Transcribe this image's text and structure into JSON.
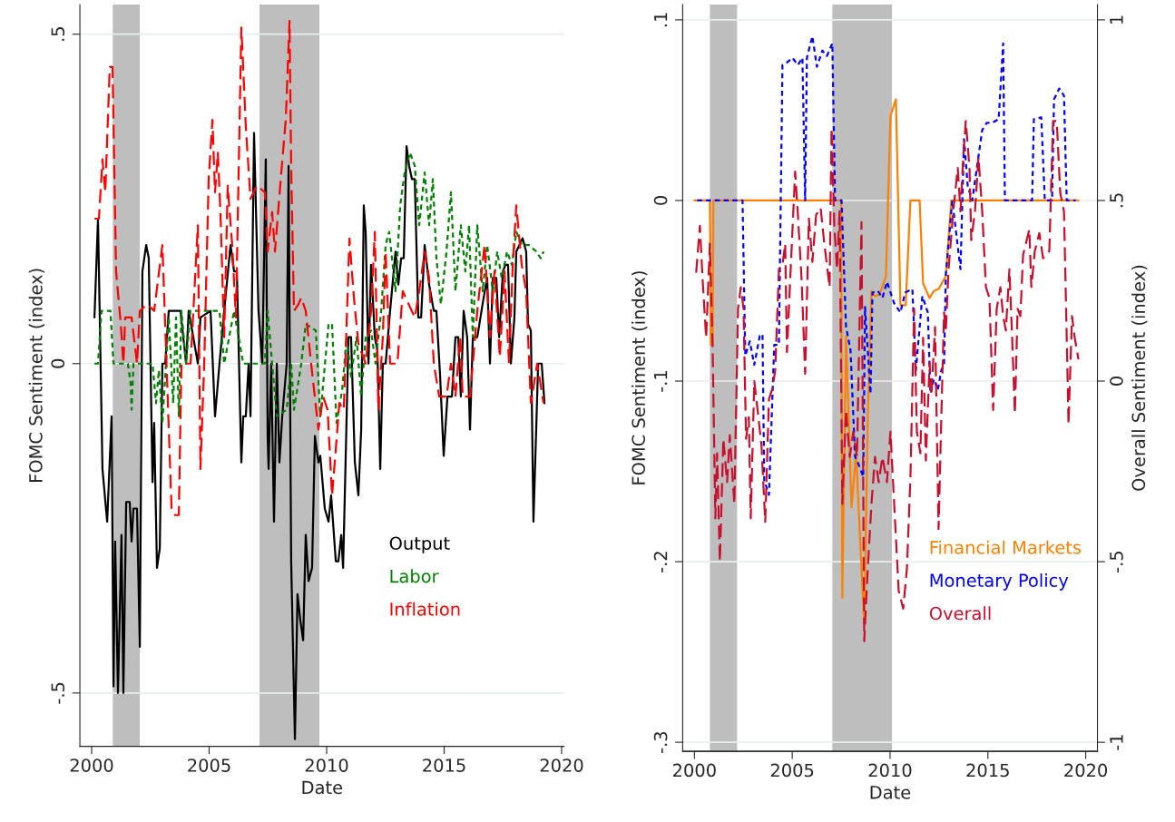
{
  "chart_data": [
    {
      "type": "line",
      "xlabel": "Date",
      "ylabel": "FOMC Sentiment (index)",
      "xlim": [
        1999.5,
        2020.1
      ],
      "ylim": [
        -0.581,
        0.545
      ],
      "xticks": [
        2000,
        2005,
        2010,
        2015,
        2020
      ],
      "yticks": [
        {
          "value": -0.5,
          "label": "-.5"
        },
        {
          "value": 0,
          "label": "0"
        },
        {
          "value": 0.5,
          "label": ".5"
        }
      ],
      "grid": "y",
      "legend": "bottom right",
      "bands": [
        {
          "axis": "x",
          "from": 2000.9,
          "to": 2002.05,
          "color": "#bebebe"
        },
        {
          "axis": "x",
          "from": 2007.14,
          "to": 2009.69,
          "color": "#bebebe"
        }
      ],
      "series": [
        {
          "name": "Output",
          "color": "#000000",
          "line_style": "solid",
          "x": [
            2000.12,
            2000.27,
            2000.46,
            2000.66,
            2000.85,
            2000.93,
            2001.0,
            2001.12,
            2001.27,
            2001.35,
            2001.47,
            2001.62,
            2001.7,
            2001.78,
            2001.93,
            2002.05,
            2002.16,
            2002.32,
            2002.43,
            2002.59,
            2002.66,
            2002.78,
            2002.9,
            2003.01,
            2003.13,
            2003.28,
            2003.51,
            2003.78,
            2004.02,
            2004.13,
            2004.52,
            2004.63,
            2005.06,
            2005.25,
            2005.44,
            2005.64,
            2005.91,
            2006.06,
            2006.18,
            2006.37,
            2006.45,
            2006.56,
            2006.68,
            2006.76,
            2006.91,
            2007.1,
            2007.26,
            2007.41,
            2007.49,
            2007.53,
            2007.64,
            2007.76,
            2007.88,
            2007.99,
            2008.11,
            2008.3,
            2008.38,
            2008.49,
            2008.65,
            2008.76,
            2008.88,
            2009.0,
            2009.11,
            2009.23,
            2009.38,
            2009.5,
            2009.65,
            2009.73,
            2009.92,
            2010.08,
            2010.19,
            2010.39,
            2010.5,
            2010.62,
            2010.7,
            2010.93,
            2011.04,
            2011.2,
            2011.35,
            2011.47,
            2011.58,
            2011.66,
            2011.78,
            2011.89,
            2012.05,
            2012.16,
            2012.28,
            2012.39,
            2012.51,
            2012.7,
            2012.93,
            2013.05,
            2013.17,
            2013.28,
            2013.4,
            2013.51,
            2013.63,
            2013.75,
            2013.9,
            2014.02,
            2014.17,
            2014.36,
            2014.56,
            2014.67,
            2014.83,
            2014.98,
            2015.14,
            2015.33,
            2015.48,
            2015.6,
            2015.71,
            2015.83,
            2015.98,
            2016.1,
            2016.22,
            2016.41,
            2016.68,
            2016.83,
            2016.95,
            2017.07,
            2017.22,
            2017.34,
            2017.5,
            2017.61,
            2017.72,
            2017.84,
            2017.99,
            2018.07,
            2018.34,
            2018.49,
            2018.57,
            2018.69,
            2018.8,
            2019.0,
            2019.15,
            2019.27
          ],
          "values": [
            0.07,
            0.22,
            -0.16,
            -0.24,
            -0.08,
            -0.49,
            -0.27,
            -0.5,
            -0.26,
            -0.5,
            -0.21,
            -0.21,
            -0.27,
            -0.22,
            -0.22,
            -0.43,
            0.14,
            0.18,
            0.16,
            -0.18,
            -0.09,
            -0.31,
            -0.28,
            0,
            0,
            0.08,
            0.08,
            0.08,
            0,
            0.08,
            0,
            0.07,
            0.08,
            -0.08,
            0,
            0.08,
            0.18,
            0.14,
            0.14,
            -0.15,
            -0.08,
            -0.08,
            0,
            -0.08,
            0.35,
            0.08,
            0,
            0.31,
            -0.11,
            -0.16,
            0,
            -0.24,
            0,
            -0.15,
            -0.08,
            0,
            0.3,
            -0.3,
            -0.57,
            -0.35,
            -0.39,
            -0.42,
            -0.26,
            -0.33,
            -0.31,
            -0.11,
            -0.15,
            -0.14,
            -0.22,
            -0.24,
            -0.2,
            -0.3,
            -0.3,
            -0.26,
            -0.31,
            0.04,
            0.04,
            -0.15,
            -0.2,
            -0.1,
            0.24,
            0.2,
            0,
            0.15,
            0.04,
            0.02,
            -0.16,
            0,
            0,
            0.08,
            0.17,
            0.12,
            0.16,
            0.16,
            0.33,
            0.3,
            0.28,
            0.28,
            0.07,
            0.07,
            0.18,
            0.12,
            0.08,
            0.08,
            -0.02,
            -0.14,
            -0.05,
            -0.05,
            0.04,
            0.04,
            -0.05,
            0.08,
            0.04,
            -0.1,
            0.04,
            0.04,
            0.1,
            0.13,
            0,
            0.13,
            0.13,
            0.04,
            0.14,
            0.15,
            0.15,
            0,
            0.07,
            0.17,
            0.19,
            0.17,
            0.06,
            0.05,
            -0.24,
            0,
            0,
            -0.06
          ]
        },
        {
          "name": "Labor",
          "color": "#008000",
          "line_style": "dotted",
          "x": [
            2000.12,
            2000.27,
            2000.42,
            2000.8,
            2000.93,
            2001.54,
            2001.66,
            2001.7,
            2001.78,
            2002.59,
            2002.74,
            2002.86,
            2003.01,
            2003.13,
            2003.28,
            2003.47,
            2003.59,
            2003.71,
            2003.82,
            2004.02,
            2004.2,
            2005.44,
            2005.64,
            2006.06,
            2006.45,
            2007.37,
            2007.49,
            2007.68,
            2007.88,
            2008.3,
            2008.49,
            2008.61,
            2008.92,
            2009.11,
            2009.54,
            2009.73,
            2010.08,
            2010.23,
            2010.42,
            2010.66,
            2010.85,
            2011.04,
            2011.27,
            2011.47,
            2011.66,
            2011.89,
            2012.08,
            2012.32,
            2012.51,
            2012.66,
            2012.93,
            2013.13,
            2013.32,
            2013.55,
            2013.75,
            2013.94,
            2014.17,
            2014.36,
            2014.52,
            2014.67,
            2014.86,
            2015.1,
            2015.29,
            2015.48,
            2015.71,
            2015.9,
            2016.06,
            2016.22,
            2016.41,
            2016.64,
            2016.83,
            2017.07,
            2017.26,
            2017.45,
            2017.68,
            2017.88,
            2018.07,
            2018.3,
            2018.61,
            2018.92,
            2019.11,
            2019.23
          ],
          "values": [
            0,
            0,
            0.08,
            0.08,
            0,
            0,
            -0.03,
            -0.07,
            0,
            0,
            -0.06,
            -0.01,
            -0.09,
            -0.02,
            0.07,
            -0.06,
            0.07,
            -0.08,
            0.08,
            0,
            0.08,
            0.08,
            0,
            0.08,
            0,
            0,
            0.08,
            0,
            -0.08,
            -0.07,
            0,
            -0.07,
            0,
            0.06,
            0.05,
            -0.08,
            0.06,
            0.06,
            -0.09,
            -0.04,
            0.04,
            -0.02,
            0.04,
            -0.05,
            0.04,
            0.05,
            0,
            0.08,
            0.18,
            0.2,
            0.11,
            0.24,
            0.29,
            0.32,
            0.3,
            0.21,
            0.29,
            0.21,
            0.28,
            0.16,
            0.09,
            0.17,
            0.26,
            0.11,
            0.21,
            0.14,
            0.21,
            0.04,
            0.21,
            0.11,
            0.18,
            0.11,
            0.17,
            0.13,
            0.17,
            0.15,
            0.2,
            0.18,
            0.18,
            0.17,
            0.16,
            0.17
          ]
        },
        {
          "name": "Inflation",
          "color": "#ff0000",
          "line_style": "dashed",
          "x": [
            2000.12,
            2000.31,
            2000.46,
            2000.58,
            2000.77,
            2000.89,
            2001.04,
            2001.24,
            2001.35,
            2001.43,
            2001.7,
            2001.93,
            2002.05,
            2002.36,
            2002.66,
            2003.01,
            2003.4,
            2003.55,
            2003.71,
            2003.82,
            2004.21,
            2004.52,
            2004.63,
            2004.79,
            2004.98,
            2005.14,
            2005.25,
            2005.37,
            2005.48,
            2005.64,
            2005.79,
            2005.98,
            2006.14,
            2006.37,
            2006.56,
            2006.76,
            2007.03,
            2007.37,
            2007.49,
            2007.68,
            2007.8,
            2008.07,
            2008.26,
            2008.42,
            2008.49,
            2008.61,
            2008.8,
            2008.92,
            2009.11,
            2009.34,
            2009.65,
            2009.85,
            2010.04,
            2010.23,
            2010.39,
            2010.54,
            2010.73,
            2010.97,
            2011.16,
            2011.35,
            2011.66,
            2011.89,
            2012.05,
            2012.2,
            2012.39,
            2012.51,
            2012.7,
            2013.01,
            2013.24,
            2013.75,
            2013.94,
            2014.17,
            2014.36,
            2014.56,
            2014.79,
            2015.1,
            2015.29,
            2015.48,
            2015.68,
            2015.79,
            2016.1,
            2016.41,
            2016.72,
            2016.95,
            2017.14,
            2017.37,
            2017.57,
            2017.76,
            2017.92,
            2018.07,
            2018.3,
            2018.49,
            2018.69,
            2018.96,
            2019.23
          ],
          "values": [
            0.22,
            0.22,
            0.31,
            0.26,
            0.45,
            0.45,
            0.14,
            0.06,
            0,
            0.07,
            0.07,
            0,
            0.08,
            0.09,
            0.08,
            0.18,
            -0.22,
            -0.23,
            -0.23,
            0,
            0,
            0.21,
            -0.16,
            0,
            0.28,
            0.37,
            0.26,
            0.32,
            0.23,
            0.04,
            0.27,
            0.18,
            0.07,
            0.51,
            0.36,
            0.25,
            0.27,
            0.26,
            0.17,
            0.23,
            0.17,
            0.29,
            0.37,
            0.52,
            0.3,
            0.08,
            0.09,
            0.1,
            0.08,
            0,
            -0.1,
            -0.05,
            -0.07,
            -0.2,
            -0.13,
            -0.06,
            -0.07,
            0.19,
            0.1,
            0.03,
            0,
            0.08,
            0.2,
            -0.07,
            0.04,
            0.17,
            0,
            0,
            0.11,
            0.07,
            0.11,
            0.17,
            0.13,
            0,
            -0.05,
            -0.05,
            0,
            -0.05,
            0.04,
            -0.05,
            -0.05,
            0.08,
            0.18,
            0.04,
            0.14,
            0.01,
            0.14,
            0,
            0.15,
            0.24,
            0.15,
            0.11,
            -0.06,
            0,
            -0.06
          ]
        }
      ]
    },
    {
      "type": "line",
      "xlabel": "Date",
      "ylabel": "FOMC Sentiment (index)",
      "y2label": "Overall Sentiment (index)",
      "xlim": [
        1999.4,
        2020.6
      ],
      "ylim": [
        -0.305,
        0.1085
      ],
      "y2lim": [
        -1.025,
        1.0425
      ],
      "xticks": [
        2000,
        2005,
        2010,
        2015,
        2020
      ],
      "yticks": [
        {
          "value": -0.3,
          "label": "-.3"
        },
        {
          "value": -0.2,
          "label": "-.2"
        },
        {
          "value": -0.1,
          "label": "-.1"
        },
        {
          "value": 0,
          "label": "0"
        },
        {
          "value": 0.1,
          "label": ".1"
        }
      ],
      "y2ticks": [
        {
          "value": -1,
          "label": "-1"
        },
        {
          "value": -0.5,
          "label": "-.5"
        },
        {
          "value": 0,
          "label": "0"
        },
        {
          "value": 0.5,
          "label": ".5"
        },
        {
          "value": 1,
          "label": "1"
        }
      ],
      "grid": "y",
      "legend": "bottom right",
      "bands": [
        {
          "axis": "x",
          "from": 2000.79,
          "to": 2002.18,
          "color": "#bebebe"
        },
        {
          "axis": "x",
          "from": 2007.05,
          "to": 2010.1,
          "color": "#bebebe"
        }
      ],
      "series": [
        {
          "name": "Financial Markets",
          "color": "#ff8000",
          "line_style": "solid",
          "x": [
            2000.0,
            2000.79,
            2000.84,
            2000.93,
            2000.97,
            2007.5,
            2007.56,
            2007.75,
            2008.03,
            2008.26,
            2008.68,
            2008.86,
            2009.05,
            2009.23,
            2009.47,
            2009.79,
            2010.02,
            2010.3,
            2010.53,
            2010.8,
            2011.04,
            2011.51,
            2011.69,
            2012.02,
            2012.25,
            2012.48,
            2012.85,
            2013.13,
            2019.63
          ],
          "values": [
            0,
            0,
            -0.08,
            -0.08,
            0,
            0,
            -0.22,
            -0.075,
            -0.17,
            -0.14,
            -0.235,
            -0.12,
            -0.05,
            -0.053,
            -0.052,
            -0.042,
            0.047,
            0.056,
            -0.058,
            -0.058,
            0,
            0,
            -0.046,
            -0.054,
            -0.05,
            -0.049,
            -0.042,
            0,
            0
          ]
        },
        {
          "name": "Monetary Policy",
          "color": "#0000ff",
          "line_style": "dotted",
          "x": [
            2000.14,
            2002.46,
            2002.6,
            2002.83,
            2003.06,
            2003.34,
            2003.48,
            2003.57,
            2003.81,
            2004.08,
            2004.32,
            2004.5,
            2004.69,
            2005.01,
            2005.29,
            2005.52,
            2005.66,
            2005.75,
            2006.03,
            2006.26,
            2006.54,
            2006.77,
            2007.05,
            2007.19,
            2007.52,
            2007.75,
            2007.98,
            2008.21,
            2008.35,
            2008.63,
            2008.72,
            2009.0,
            2009.1,
            2009.37,
            2009.61,
            2009.84,
            2010.21,
            2010.53,
            2010.77,
            2011.14,
            2011.32,
            2011.65,
            2011.93,
            2012.06,
            2012.25,
            2012.44,
            2012.62,
            2012.76,
            2012.85,
            2013.18,
            2013.6,
            2013.78,
            2013.97,
            2014.2,
            2014.71,
            2014.94,
            2015.22,
            2015.55,
            2015.78,
            2015.87,
            2017.26,
            2017.35,
            2017.73,
            2017.91,
            2018.28,
            2018.38,
            2018.65,
            2018.89,
            2019.03,
            2019.49
          ],
          "values": [
            0,
            0,
            -0.086,
            -0.078,
            -0.091,
            -0.075,
            -0.074,
            -0.155,
            -0.163,
            -0.08,
            -0.08,
            0.075,
            0.076,
            0.079,
            0.075,
            0.079,
            0,
            0.079,
            0.091,
            0.074,
            0.083,
            0.08,
            0.087,
            0,
            0,
            -0.07,
            -0.083,
            -0.142,
            -0.145,
            -0.153,
            -0.059,
            -0.107,
            -0.051,
            -0.05,
            -0.054,
            -0.045,
            -0.057,
            -0.062,
            -0.051,
            -0.049,
            -0.094,
            -0.053,
            -0.062,
            -0.105,
            -0.099,
            -0.105,
            -0.094,
            -0.091,
            -0.041,
            0,
            -0.038,
            0.034,
            0.008,
            0,
            0.039,
            0.043,
            0.043,
            0.045,
            0.087,
            0,
            0,
            0.045,
            0.046,
            0,
            0,
            0.056,
            0.062,
            0.058,
            0,
            0
          ]
        },
        {
          "name": "Overall",
          "color": "#c8102e",
          "line_style": "dashed",
          "axis": "y2",
          "x": [
            2000.09,
            2000.28,
            2000.42,
            2000.6,
            2000.79,
            2000.93,
            2001.07,
            2001.16,
            2001.3,
            2001.48,
            2001.67,
            2001.81,
            2002.04,
            2002.23,
            2002.37,
            2002.51,
            2002.64,
            2002.78,
            2002.88,
            2003.06,
            2003.25,
            2003.43,
            2003.62,
            2003.81,
            2003.99,
            2004.13,
            2004.32,
            2004.5,
            2004.64,
            2004.73,
            2004.92,
            2005.15,
            2005.29,
            2005.48,
            2005.66,
            2005.85,
            2006.03,
            2006.22,
            2006.45,
            2006.64,
            2006.91,
            2007.01,
            2007.15,
            2007.29,
            2007.42,
            2007.56,
            2007.75,
            2007.94,
            2008.12,
            2008.31,
            2008.54,
            2008.68,
            2008.86,
            2009.05,
            2009.23,
            2009.42,
            2009.61,
            2009.84,
            2010.02,
            2010.44,
            2010.67,
            2010.86,
            2011.04,
            2011.23,
            2011.37,
            2011.55,
            2011.69,
            2011.83,
            2012.02,
            2012.11,
            2012.3,
            2012.48,
            2012.62,
            2012.76,
            2012.85,
            2012.99,
            2013.23,
            2013.46,
            2013.6,
            2013.74,
            2013.87,
            2014.06,
            2014.15,
            2014.34,
            2014.52,
            2014.71,
            2014.9,
            2015.08,
            2015.27,
            2015.45,
            2015.64,
            2015.78,
            2015.92,
            2016.1,
            2016.24,
            2016.38,
            2016.52,
            2016.66,
            2016.8,
            2017.12,
            2017.22,
            2017.4,
            2017.63,
            2017.82,
            2018.0,
            2018.14,
            2018.33,
            2018.52,
            2018.7,
            2018.89,
            2019.07,
            2019.12,
            2019.3,
            2019.44,
            2019.63
          ],
          "values": [
            0.3,
            0.43,
            0.28,
            0.12,
            0.38,
            0.1,
            -0.38,
            -0.2,
            -0.5,
            -0.16,
            -0.28,
            -0.15,
            -0.34,
            0.2,
            0.26,
            0.2,
            -0.16,
            -0.1,
            -0.38,
            0,
            -0.09,
            -0.18,
            -0.39,
            -0.05,
            -0.02,
            0.03,
            0.31,
            0.32,
            0.38,
            0.08,
            0.31,
            0.58,
            0.46,
            0.28,
            0.02,
            0.45,
            0.33,
            0.46,
            0.48,
            0.38,
            0.26,
            0.7,
            0.43,
            0.31,
            0.47,
            -0.34,
            -0.08,
            -0.21,
            -0.14,
            -0.21,
            0.44,
            -0.72,
            -0.52,
            -0.34,
            -0.21,
            -0.28,
            -0.21,
            -0.28,
            -0.14,
            -0.58,
            -0.63,
            -0.52,
            -0.27,
            0.2,
            -0.14,
            -0.2,
            0.12,
            -0.22,
            0.05,
            -0.04,
            0.15,
            -0.41,
            -0.1,
            0.19,
            0.14,
            0.31,
            0.47,
            0.59,
            0.47,
            0.62,
            0.72,
            0.59,
            0.39,
            0.47,
            0.62,
            0.47,
            0.26,
            0.23,
            -0.08,
            0.2,
            0.26,
            0.18,
            0.14,
            0.31,
            0.12,
            -0.09,
            0.2,
            0.18,
            0.35,
            0.42,
            0.26,
            0.36,
            0.41,
            0.34,
            0.35,
            0.36,
            0.72,
            0.72,
            0.52,
            0.47,
            0.02,
            -0.12,
            0.18,
            0.12,
            0.06
          ]
        }
      ]
    }
  ]
}
